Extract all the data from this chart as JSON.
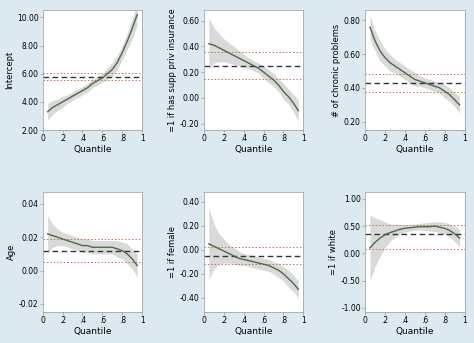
{
  "background_color": "#dce9f0",
  "subplot_bg": "#ffffff",
  "quantiles": [
    0.05,
    0.1,
    0.15,
    0.2,
    0.25,
    0.3,
    0.35,
    0.4,
    0.45,
    0.5,
    0.55,
    0.6,
    0.65,
    0.7,
    0.75,
    0.8,
    0.85,
    0.9,
    0.95
  ],
  "xtick_labels": [
    "0",
    ".2",
    ".4",
    ".6",
    ".8",
    "1"
  ],
  "panels": [
    {
      "ylabel": "Intercept",
      "xlabel": "Quantile",
      "ylim": [
        2.0,
        10.5
      ],
      "yticks": [
        2.0,
        4.0,
        6.0,
        8.0,
        10.0
      ],
      "ytick_labels": [
        "2.00",
        "4.00",
        "6.00",
        "8.00",
        "10.00"
      ],
      "xticks": [
        0.0,
        0.2,
        0.4,
        0.6,
        0.8,
        1.0
      ],
      "ols_line": 5.8,
      "ols_ci_upper": 6.05,
      "ols_ci_lower": 5.55,
      "qr_line": [
        3.3,
        3.6,
        3.8,
        4.0,
        4.2,
        4.4,
        4.6,
        4.8,
        5.0,
        5.3,
        5.5,
        5.7,
        6.0,
        6.3,
        6.8,
        7.5,
        8.3,
        9.2,
        10.2
      ],
      "qr_ci_upper": [
        3.9,
        4.1,
        4.2,
        4.4,
        4.5,
        4.7,
        4.9,
        5.1,
        5.3,
        5.6,
        5.8,
        6.0,
        6.4,
        6.8,
        7.3,
        8.0,
        8.9,
        9.9,
        11.0
      ],
      "qr_ci_lower": [
        2.7,
        3.1,
        3.4,
        3.6,
        3.9,
        4.1,
        4.3,
        4.5,
        4.7,
        5.0,
        5.2,
        5.4,
        5.6,
        5.8,
        6.3,
        7.0,
        7.7,
        8.5,
        9.4
      ]
    },
    {
      "ylabel": "=1 if has supp priv insurance",
      "xlabel": "Quantile",
      "ylim": [
        -0.25,
        0.68
      ],
      "yticks": [
        -0.2,
        0.0,
        0.2,
        0.4,
        0.6
      ],
      "ytick_labels": [
        "-0.20",
        "0.00",
        "0.20",
        "0.40",
        "0.60"
      ],
      "xticks": [
        0.0,
        0.2,
        0.4,
        0.6,
        0.8,
        1.0
      ],
      "ols_line": 0.25,
      "ols_ci_upper": 0.355,
      "ols_ci_lower": 0.145,
      "qr_line": [
        0.42,
        0.41,
        0.39,
        0.37,
        0.35,
        0.33,
        0.31,
        0.29,
        0.27,
        0.25,
        0.23,
        0.2,
        0.17,
        0.14,
        0.1,
        0.05,
        0.01,
        -0.04,
        -0.1
      ],
      "qr_ci_upper": [
        0.62,
        0.55,
        0.5,
        0.46,
        0.43,
        0.4,
        0.37,
        0.34,
        0.31,
        0.29,
        0.27,
        0.25,
        0.22,
        0.19,
        0.15,
        0.11,
        0.07,
        0.03,
        -0.02
      ],
      "qr_ci_lower": [
        0.22,
        0.27,
        0.28,
        0.28,
        0.27,
        0.26,
        0.25,
        0.24,
        0.23,
        0.21,
        0.19,
        0.15,
        0.12,
        0.09,
        0.05,
        -0.01,
        -0.05,
        -0.11,
        -0.18
      ]
    },
    {
      "ylabel": "# of chronic problems",
      "xlabel": "Quantile",
      "ylim": [
        0.15,
        0.86
      ],
      "yticks": [
        0.2,
        0.4,
        0.6,
        0.8
      ],
      "ytick_labels": [
        "0.20",
        "0.40",
        "0.60",
        "0.80"
      ],
      "xticks": [
        0.0,
        0.2,
        0.4,
        0.6,
        0.8,
        1.0
      ],
      "ols_line": 0.43,
      "ols_ci_upper": 0.485,
      "ols_ci_lower": 0.375,
      "qr_line": [
        0.76,
        0.68,
        0.62,
        0.58,
        0.55,
        0.53,
        0.51,
        0.49,
        0.47,
        0.45,
        0.44,
        0.43,
        0.42,
        0.41,
        0.4,
        0.38,
        0.36,
        0.33,
        0.3
      ],
      "qr_ci_upper": [
        0.83,
        0.74,
        0.68,
        0.63,
        0.6,
        0.57,
        0.55,
        0.53,
        0.51,
        0.49,
        0.47,
        0.46,
        0.45,
        0.44,
        0.43,
        0.42,
        0.4,
        0.37,
        0.35
      ],
      "qr_ci_lower": [
        0.69,
        0.62,
        0.56,
        0.53,
        0.5,
        0.49,
        0.47,
        0.45,
        0.43,
        0.41,
        0.41,
        0.4,
        0.39,
        0.38,
        0.37,
        0.34,
        0.32,
        0.29,
        0.25
      ]
    },
    {
      "ylabel": "Age",
      "xlabel": "Quantile",
      "ylim": [
        -0.025,
        0.047
      ],
      "yticks": [
        -0.02,
        0.0,
        0.02,
        0.04
      ],
      "ytick_labels": [
        "-0.02",
        "0.00",
        "0.02",
        "0.04"
      ],
      "xticks": [
        0.0,
        0.2,
        0.4,
        0.6,
        0.8,
        1.0
      ],
      "ols_line": 0.012,
      "ols_ci_upper": 0.019,
      "ols_ci_lower": 0.005,
      "qr_line": [
        0.022,
        0.021,
        0.02,
        0.019,
        0.018,
        0.017,
        0.016,
        0.015,
        0.015,
        0.014,
        0.014,
        0.014,
        0.014,
        0.014,
        0.013,
        0.012,
        0.01,
        0.007,
        0.003
      ],
      "qr_ci_upper": [
        0.033,
        0.028,
        0.025,
        0.023,
        0.022,
        0.021,
        0.02,
        0.019,
        0.019,
        0.018,
        0.018,
        0.018,
        0.018,
        0.018,
        0.018,
        0.017,
        0.016,
        0.013,
        0.01
      ],
      "qr_ci_lower": [
        0.011,
        0.014,
        0.015,
        0.015,
        0.014,
        0.013,
        0.012,
        0.011,
        0.011,
        0.01,
        0.01,
        0.01,
        0.01,
        0.01,
        0.008,
        0.007,
        0.004,
        0.001,
        -0.004
      ]
    },
    {
      "ylabel": "=1 if female",
      "xlabel": "Quantile",
      "ylim": [
        -0.52,
        0.48
      ],
      "yticks": [
        -0.4,
        -0.2,
        0.0,
        0.2,
        0.4
      ],
      "ytick_labels": [
        "-0.40",
        "-0.20",
        "0.00",
        "0.20",
        "0.40"
      ],
      "xticks": [
        0.0,
        0.2,
        0.4,
        0.6,
        0.8,
        1.0
      ],
      "ols_line": -0.05,
      "ols_ci_upper": 0.02,
      "ols_ci_lower": -0.12,
      "qr_line": [
        0.05,
        0.03,
        0.01,
        -0.01,
        -0.03,
        -0.05,
        -0.07,
        -0.08,
        -0.09,
        -0.1,
        -0.11,
        -0.12,
        -0.13,
        -0.15,
        -0.17,
        -0.2,
        -0.24,
        -0.28,
        -0.33
      ],
      "qr_ci_upper": [
        0.35,
        0.22,
        0.14,
        0.09,
        0.05,
        0.02,
        -0.01,
        -0.03,
        -0.04,
        -0.05,
        -0.06,
        -0.07,
        -0.08,
        -0.1,
        -0.11,
        -0.14,
        -0.17,
        -0.21,
        -0.26
      ],
      "qr_ci_lower": [
        -0.25,
        -0.16,
        -0.12,
        -0.11,
        -0.11,
        -0.12,
        -0.13,
        -0.13,
        -0.14,
        -0.15,
        -0.16,
        -0.17,
        -0.18,
        -0.2,
        -0.23,
        -0.26,
        -0.31,
        -0.35,
        -0.4
      ]
    },
    {
      "ylabel": "=1 if white",
      "xlabel": "Quantile",
      "ylim": [
        -1.08,
        1.12
      ],
      "yticks": [
        -1.0,
        -0.5,
        0.0,
        0.5,
        1.0
      ],
      "ytick_labels": [
        "-1.00",
        "-0.50",
        "0.00",
        "0.50",
        "1.00"
      ],
      "xticks": [
        0.0,
        0.2,
        0.4,
        0.6,
        0.8,
        1.0
      ],
      "ols_line": 0.35,
      "ols_ci_upper": 0.52,
      "ols_ci_lower": 0.08,
      "qr_line": [
        0.1,
        0.2,
        0.28,
        0.34,
        0.38,
        0.41,
        0.44,
        0.46,
        0.47,
        0.48,
        0.49,
        0.49,
        0.49,
        0.5,
        0.48,
        0.46,
        0.42,
        0.36,
        0.28
      ],
      "qr_ci_upper": [
        0.7,
        0.65,
        0.62,
        0.58,
        0.54,
        0.53,
        0.53,
        0.53,
        0.53,
        0.54,
        0.55,
        0.56,
        0.57,
        0.58,
        0.58,
        0.57,
        0.54,
        0.5,
        0.44
      ],
      "qr_ci_lower": [
        -0.5,
        -0.25,
        -0.06,
        0.1,
        0.22,
        0.29,
        0.35,
        0.39,
        0.41,
        0.42,
        0.43,
        0.42,
        0.41,
        0.4,
        0.38,
        0.35,
        0.3,
        0.22,
        0.12
      ]
    }
  ],
  "line_color": "#4a6b42",
  "ci_fill_color": "#c0c0c0",
  "ci_fill_alpha": 0.6,
  "ols_line_color": "#333333",
  "ols_ci_color": "#c87050",
  "tick_labelsize": 5.5,
  "xlabel_fontsize": 6.5,
  "ylabel_fontsize": 6.0,
  "ols_lw": 1.0,
  "ols_ci_lw": 0.7,
  "qr_lw": 1.0
}
